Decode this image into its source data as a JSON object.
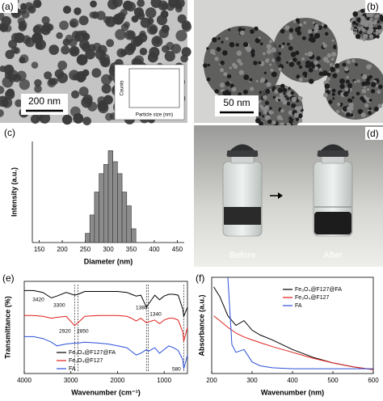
{
  "panels": {
    "a": {
      "label": "(a)",
      "scale_bar": "200 nm",
      "inset": {
        "x_label": "Particle size (nm)",
        "y_label": "Counts"
      }
    },
    "b": {
      "label": "(b)",
      "scale_bar": "50 nm"
    },
    "d": {
      "label": "(d)",
      "before": "Before",
      "after": "After"
    }
  },
  "chart_data": [
    {
      "type": "histogram",
      "panel_label": "(c)",
      "x_label": "Diameter (nm)",
      "y_label": "Intensity (a.u.)",
      "bins": [
        250,
        260,
        270,
        280,
        290,
        300,
        310,
        320,
        330,
        340,
        350,
        360
      ],
      "values": [
        0.1,
        0.3,
        0.55,
        0.75,
        0.85,
        1.0,
        0.88,
        0.75,
        0.55,
        0.4,
        0.15
      ],
      "color": "#8c8c8c",
      "xlim": [
        135,
        465
      ],
      "ylim": [
        0,
        1.1
      ],
      "xticks": [
        150,
        200,
        250,
        300,
        350,
        400,
        450
      ]
    },
    {
      "type": "line",
      "panel_label": "(e)",
      "x_label": "Wavenumber (cm⁻¹)",
      "y_label": "Transmittance (%)",
      "x": [
        4000,
        3800,
        3600,
        3420,
        3300,
        3100,
        2920,
        2850,
        2700,
        2400,
        2200,
        2000,
        1800,
        1700,
        1600,
        1500,
        1380,
        1340,
        1200,
        1100,
        1000,
        900,
        800,
        700,
        600,
        580,
        500
      ],
      "series": [
        {
          "name": "Fe₃O₄@F127@FA",
          "color": "#000000",
          "values": [
            90,
            90,
            88,
            82,
            84,
            88,
            85,
            86,
            89,
            89,
            89,
            89,
            88,
            86,
            84,
            85,
            72,
            75,
            85,
            80,
            84,
            86,
            86,
            85,
            70,
            62,
            72
          ]
        },
        {
          "name": "Fe₃O₄@F127",
          "color": "#e0201b",
          "values": [
            63,
            63,
            62,
            60,
            61,
            62,
            52,
            55,
            62,
            63,
            63,
            63,
            62,
            60,
            57,
            60,
            55,
            56,
            58,
            54,
            58,
            60,
            60,
            58,
            45,
            35,
            50
          ]
        },
        {
          "name": "FA",
          "color": "#2b4fd8",
          "values": [
            40,
            40,
            38,
            34,
            30,
            32,
            33,
            33,
            34,
            33,
            32,
            30,
            28,
            24,
            20,
            22,
            26,
            24,
            28,
            22,
            26,
            30,
            28,
            25,
            15,
            5,
            20
          ]
        }
      ],
      "annotations": [
        {
          "text": "3420",
          "x": 3420,
          "dashed": false
        },
        {
          "text": "3300",
          "x": 3300,
          "dashed": false
        },
        {
          "text": "2920",
          "x": 2920,
          "dashed": true
        },
        {
          "text": "2850",
          "x": 2850,
          "dashed": true
        },
        {
          "text": "1380",
          "x": 1380,
          "dashed": true
        },
        {
          "text": "1340",
          "x": 1340,
          "dashed": true
        },
        {
          "text": "580",
          "x": 580,
          "dashed": true
        }
      ],
      "xlim": [
        4000,
        500
      ],
      "ylim": [
        0,
        100
      ],
      "xticks": [
        4000,
        3000,
        2000,
        1000
      ],
      "legend": "lower-left"
    },
    {
      "type": "line",
      "panel_label": "(f)",
      "x_label": "Wavenumber (nm)",
      "y_label": "Absorbance (a.u.)",
      "x": [
        205,
        220,
        240,
        250,
        260,
        280,
        300,
        320,
        350,
        400,
        450,
        500,
        550,
        600
      ],
      "series": [
        {
          "name": "Fe₃O₄@F127@FA",
          "color": "#000000",
          "values": [
            90,
            80,
            60,
            55,
            50,
            55,
            45,
            40,
            35,
            25,
            17,
            11,
            7,
            4
          ]
        },
        {
          "name": "Fe₃O₄@F127",
          "color": "#e0201b",
          "values": [
            60,
            55,
            48,
            45,
            42,
            38,
            35,
            32,
            28,
            22,
            16,
            11,
            7,
            4
          ]
        },
        {
          "name": "FA",
          "color": "#2b4fd8",
          "values": [
            null,
            null,
            100,
            30,
            22,
            25,
            12,
            8,
            6,
            5,
            5,
            5,
            5,
            5
          ]
        }
      ],
      "xlim": [
        200,
        600
      ],
      "ylim": [
        0,
        100
      ],
      "xticks": [
        200,
        300,
        400,
        500,
        600
      ],
      "legend": "upper-right"
    }
  ]
}
